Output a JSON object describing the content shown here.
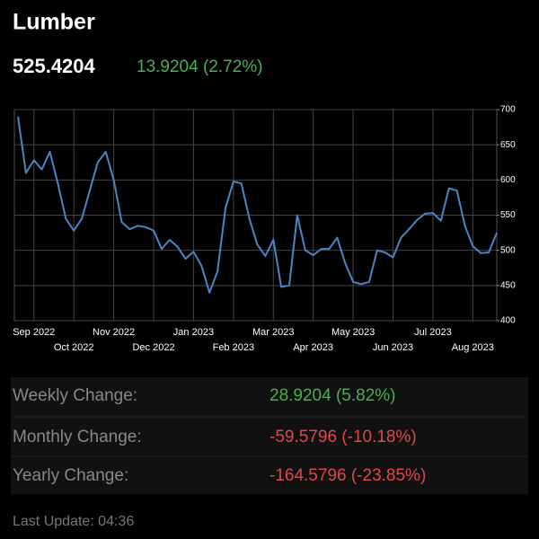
{
  "header": {
    "title": "Lumber",
    "price": "525.4204",
    "change": "13.9204 (2.72%)"
  },
  "chart_data": {
    "type": "line",
    "color": "#4a86c5",
    "grid": true,
    "categories": [
      null,
      null,
      "Sep 2022",
      null,
      null,
      null,
      null,
      "Oct 2022",
      null,
      null,
      null,
      null,
      "Nov 2022",
      null,
      null,
      null,
      null,
      "Dec 2022",
      null,
      null,
      null,
      null,
      "Jan 2023",
      null,
      null,
      null,
      null,
      "Feb 2023",
      null,
      null,
      null,
      null,
      "Mar 2023",
      null,
      null,
      null,
      null,
      "Apr 2023",
      null,
      null,
      null,
      null,
      "May 2023",
      null,
      null,
      null,
      null,
      "Jun 2023",
      null,
      null,
      null,
      null,
      "Jul 2023",
      null,
      null,
      null,
      null,
      "Aug 2023",
      null,
      null,
      null
    ],
    "values": [
      690,
      610,
      628,
      615,
      640,
      595,
      545,
      528,
      545,
      585,
      625,
      640,
      600,
      540,
      530,
      535,
      533,
      528,
      502,
      515,
      505,
      488,
      498,
      478,
      440,
      470,
      560,
      598,
      595,
      545,
      508,
      492,
      515,
      448,
      450,
      550,
      500,
      493,
      502,
      502,
      518,
      482,
      455,
      452,
      455,
      500,
      497,
      490,
      518,
      530,
      543,
      552,
      553,
      542,
      588,
      585,
      535,
      506,
      496,
      497,
      525
    ],
    "ylim": [
      400,
      700
    ],
    "yticks": [
      400,
      450,
      500,
      550,
      600,
      650,
      700
    ]
  },
  "stats": [
    {
      "label": "Weekly Change:",
      "value": "28.9204 (5.82%)",
      "color": "#4caf50"
    },
    {
      "label": "Monthly Change:",
      "value": "-59.5796 (-10.18%)",
      "color": "#e0474c"
    },
    {
      "label": "Yearly Change:",
      "value": "-164.5796 (-23.85%)",
      "color": "#e0474c"
    }
  ],
  "footer": "Last Update: 04:36"
}
